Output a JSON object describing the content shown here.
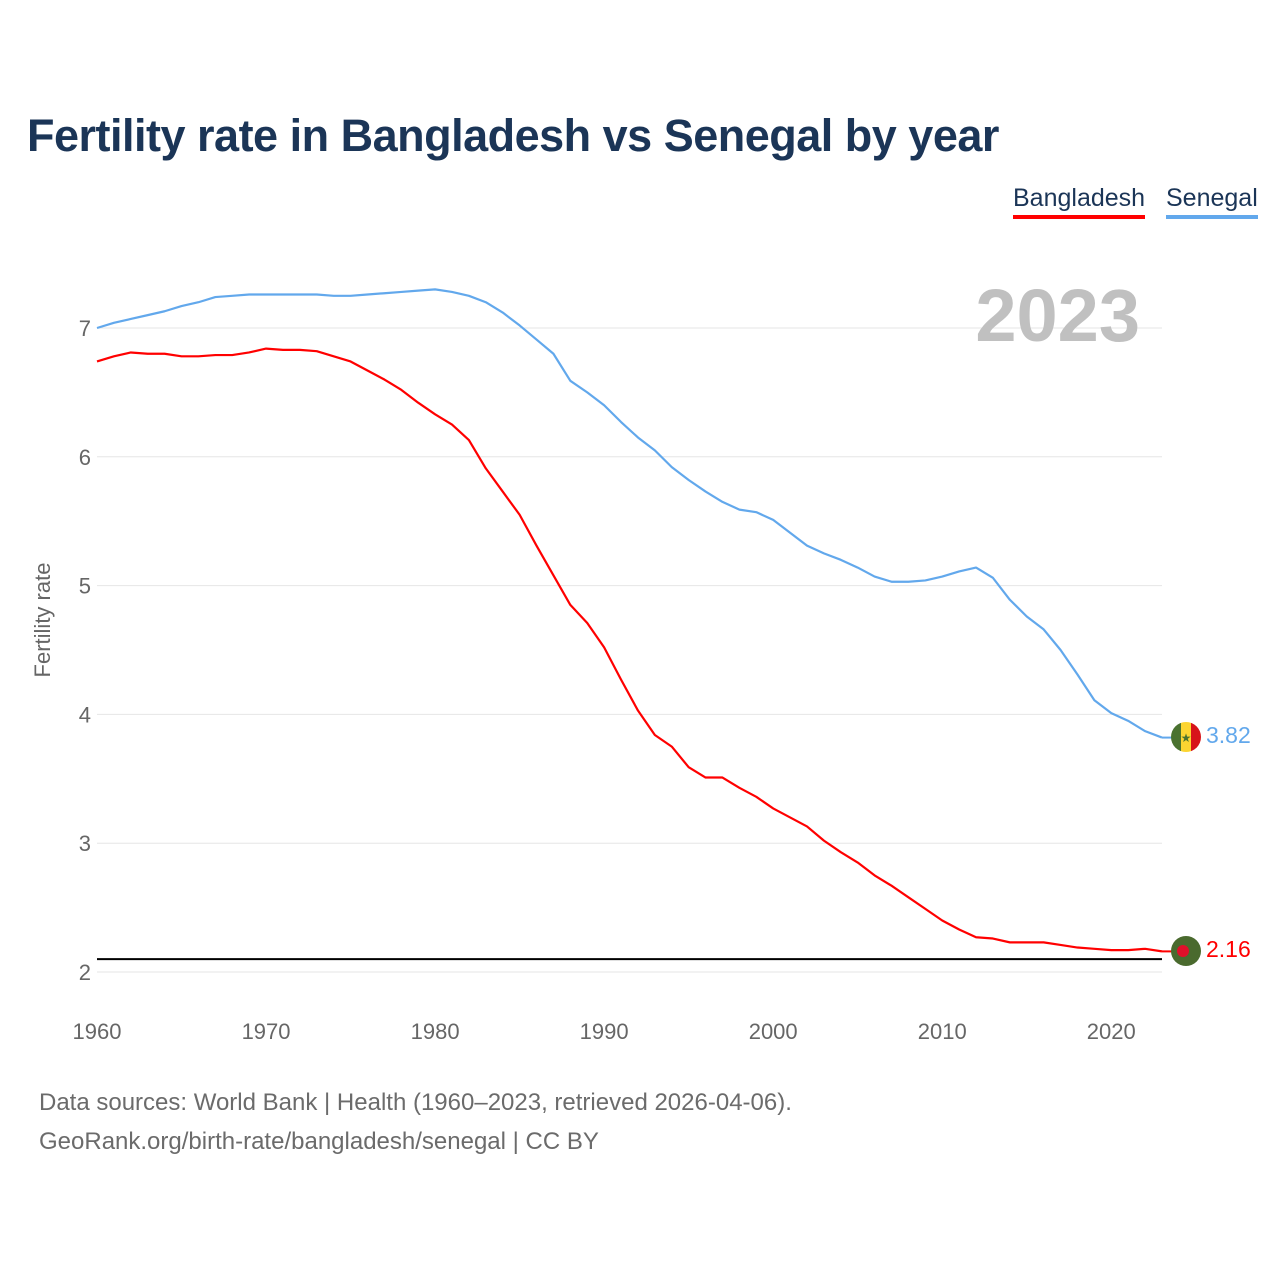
{
  "chart_data": {
    "type": "line",
    "title": "Fertility rate in Bangladesh vs Senegal by year",
    "ylabel": "Fertility rate",
    "xlabel": "",
    "year_label": "2023",
    "xlim": [
      1960,
      2023
    ],
    "ylim": [
      2,
      7
    ],
    "xticks": [
      "1960",
      "1970",
      "1980",
      "1990",
      "2000",
      "2010",
      "2020"
    ],
    "yticks": [
      "2",
      "3",
      "4",
      "5",
      "6",
      "7"
    ],
    "grid": true,
    "legend_position": "top-right",
    "reference_line": 2.1,
    "x": [
      1960,
      1961,
      1962,
      1963,
      1964,
      1965,
      1966,
      1967,
      1968,
      1969,
      1970,
      1971,
      1972,
      1973,
      1974,
      1975,
      1976,
      1977,
      1978,
      1979,
      1980,
      1981,
      1982,
      1983,
      1984,
      1985,
      1986,
      1987,
      1988,
      1989,
      1990,
      1991,
      1992,
      1993,
      1994,
      1995,
      1996,
      1997,
      1998,
      1999,
      2000,
      2001,
      2002,
      2003,
      2004,
      2005,
      2006,
      2007,
      2008,
      2009,
      2010,
      2011,
      2012,
      2013,
      2014,
      2015,
      2016,
      2017,
      2018,
      2019,
      2020,
      2021,
      2022,
      2023
    ],
    "series": [
      {
        "name": "Bangladesh",
        "color": "#ff0000",
        "end_label": "2.16",
        "values": [
          6.74,
          6.78,
          6.81,
          6.8,
          6.8,
          6.78,
          6.78,
          6.79,
          6.79,
          6.81,
          6.84,
          6.83,
          6.83,
          6.82,
          6.78,
          6.74,
          6.67,
          6.6,
          6.52,
          6.42,
          6.33,
          6.25,
          6.13,
          5.91,
          5.73,
          5.55,
          5.31,
          5.08,
          4.85,
          4.71,
          4.52,
          4.27,
          4.03,
          3.84,
          3.75,
          3.59,
          3.51,
          3.51,
          3.43,
          3.36,
          3.27,
          3.2,
          3.13,
          3.02,
          2.93,
          2.85,
          2.75,
          2.67,
          2.58,
          2.49,
          2.4,
          2.33,
          2.27,
          2.26,
          2.23,
          2.23,
          2.23,
          2.21,
          2.19,
          2.18,
          2.17,
          2.17,
          2.18,
          2.16
        ]
      },
      {
        "name": "Senegal",
        "color": "#62a8ec",
        "end_label": "3.82",
        "values": [
          7.0,
          7.04,
          7.07,
          7.1,
          7.13,
          7.17,
          7.2,
          7.24,
          7.25,
          7.26,
          7.26,
          7.26,
          7.26,
          7.26,
          7.25,
          7.25,
          7.26,
          7.27,
          7.28,
          7.29,
          7.3,
          7.28,
          7.25,
          7.2,
          7.12,
          7.02,
          6.91,
          6.8,
          6.59,
          6.5,
          6.4,
          6.27,
          6.15,
          6.05,
          5.92,
          5.82,
          5.73,
          5.65,
          5.59,
          5.57,
          5.51,
          5.41,
          5.31,
          5.25,
          5.2,
          5.14,
          5.07,
          5.03,
          5.03,
          5.04,
          5.07,
          5.11,
          5.14,
          5.06,
          4.89,
          4.76,
          4.66,
          4.5,
          4.31,
          4.11,
          4.01,
          3.95,
          3.87,
          3.82
        ]
      }
    ]
  },
  "source": {
    "line1": "Data sources: World Bank | Health (1960–2023, retrieved 2026-04-06).",
    "line2": "GeoRank.org/birth-rate/bangladesh/senegal | CC BY"
  }
}
